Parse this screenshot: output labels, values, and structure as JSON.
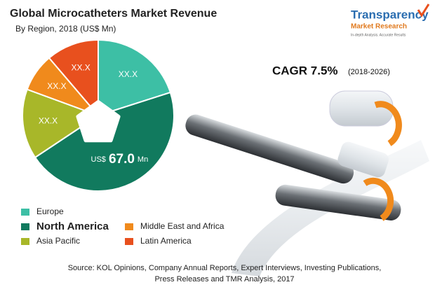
{
  "chart_data": {
    "type": "pie",
    "title": "Global Microcatheters Market Revenue",
    "subtitle": "By Region, 2018 (US$ Mn)",
    "categories": [
      "Europe",
      "North America",
      "Asia Pacific",
      "Middle East and Africa",
      "Latin America"
    ],
    "values": [
      29.5,
      67.0,
      22.0,
      12.0,
      16.5
    ],
    "value_labels": [
      "XX.X",
      "67.0",
      "XX.X",
      "XX.X",
      "XX.X"
    ],
    "value_prefix": "US$",
    "value_suffix": "Mn",
    "colors": [
      "#3dbfa5",
      "#117a5e",
      "#a8b729",
      "#f08a1c",
      "#e8501e"
    ],
    "cagr": "CAGR 7.5%",
    "cagr_period": "(2018-2026)",
    "source": [
      "Source: KOL Opinions, Company Annual Reports, Expert Interviews, Investing Publications,",
      "Press Releases and TMR Analysis, 2017"
    ]
  },
  "logo": {
    "name": "Transparency",
    "sub": "Market Research",
    "tagline": "In-depth Analysis. Accurate Results"
  }
}
